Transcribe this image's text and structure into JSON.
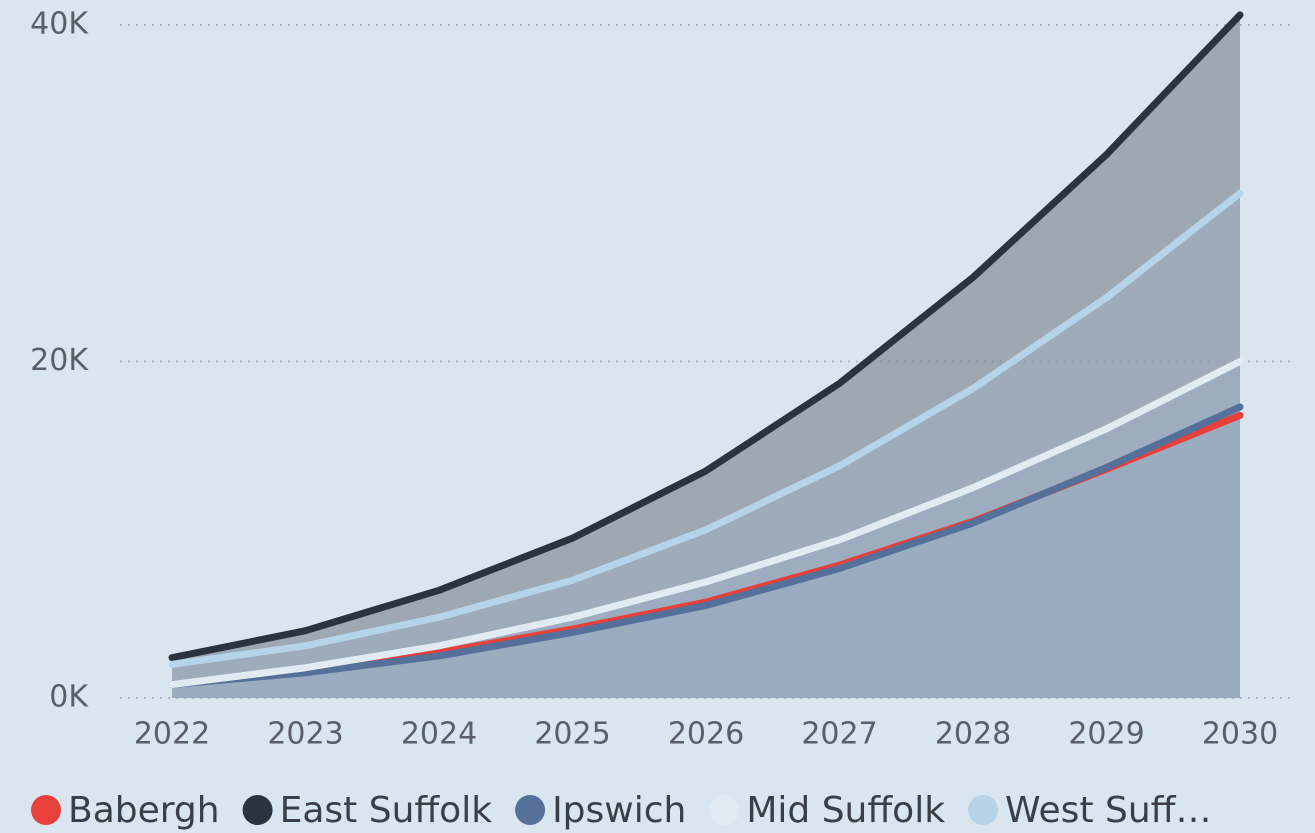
{
  "chart_data": {
    "type": "area",
    "categories": [
      "2022",
      "2023",
      "2024",
      "2025",
      "2026",
      "2027",
      "2028",
      "2029",
      "2030"
    ],
    "series": [
      {
        "name": "Babergh",
        "color": "#e8403a",
        "values": [
          800,
          1600,
          2700,
          4100,
          5700,
          7900,
          10500,
          13600,
          16800
        ]
      },
      {
        "name": "East Suffolk",
        "color": "#2b3340",
        "values": [
          2400,
          4000,
          6400,
          9500,
          13500,
          18700,
          25000,
          32300,
          40600
        ]
      },
      {
        "name": "Ipswich",
        "color": "#55709a",
        "values": [
          800,
          1500,
          2500,
          3900,
          5500,
          7700,
          10400,
          13700,
          17300
        ]
      },
      {
        "name": "Mid Suffolk",
        "color": "#e3ebf2",
        "values": [
          800,
          1800,
          3100,
          4800,
          6900,
          9400,
          12500,
          16000,
          20000
        ]
      },
      {
        "name": "West Suff…",
        "color": "#b5d4ea",
        "values": [
          2000,
          3100,
          4800,
          7000,
          10000,
          13800,
          18400,
          23800,
          30000
        ]
      }
    ],
    "ylim": [
      0,
      40000
    ],
    "yticks": [
      {
        "value": 0,
        "label": "0K"
      },
      {
        "value": 20000,
        "label": "20K"
      },
      {
        "value": 40000,
        "label": "40K"
      }
    ],
    "grid": true
  }
}
